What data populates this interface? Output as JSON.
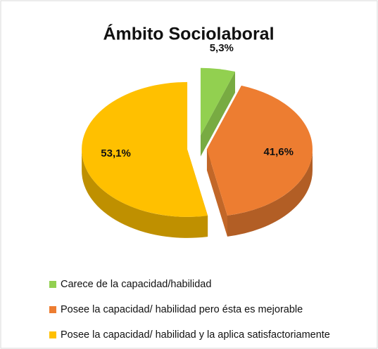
{
  "chart_data": {
    "type": "pie",
    "title": "Ámbito Sociolaboral",
    "categories": [
      "Carece de la capacidad/habilidad",
      "Posee la capacidad/ habilidad pero ésta es mejorable",
      "Posee la capacidad/ habilidad y la aplica satisfactoriamente"
    ],
    "values": [
      5.3,
      41.6,
      53.1
    ],
    "value_labels": [
      "5,3%",
      "41,6%",
      "53,1%"
    ],
    "colors": [
      "#92d050",
      "#ed7d31",
      "#ffc000"
    ],
    "legend": "bottom"
  }
}
